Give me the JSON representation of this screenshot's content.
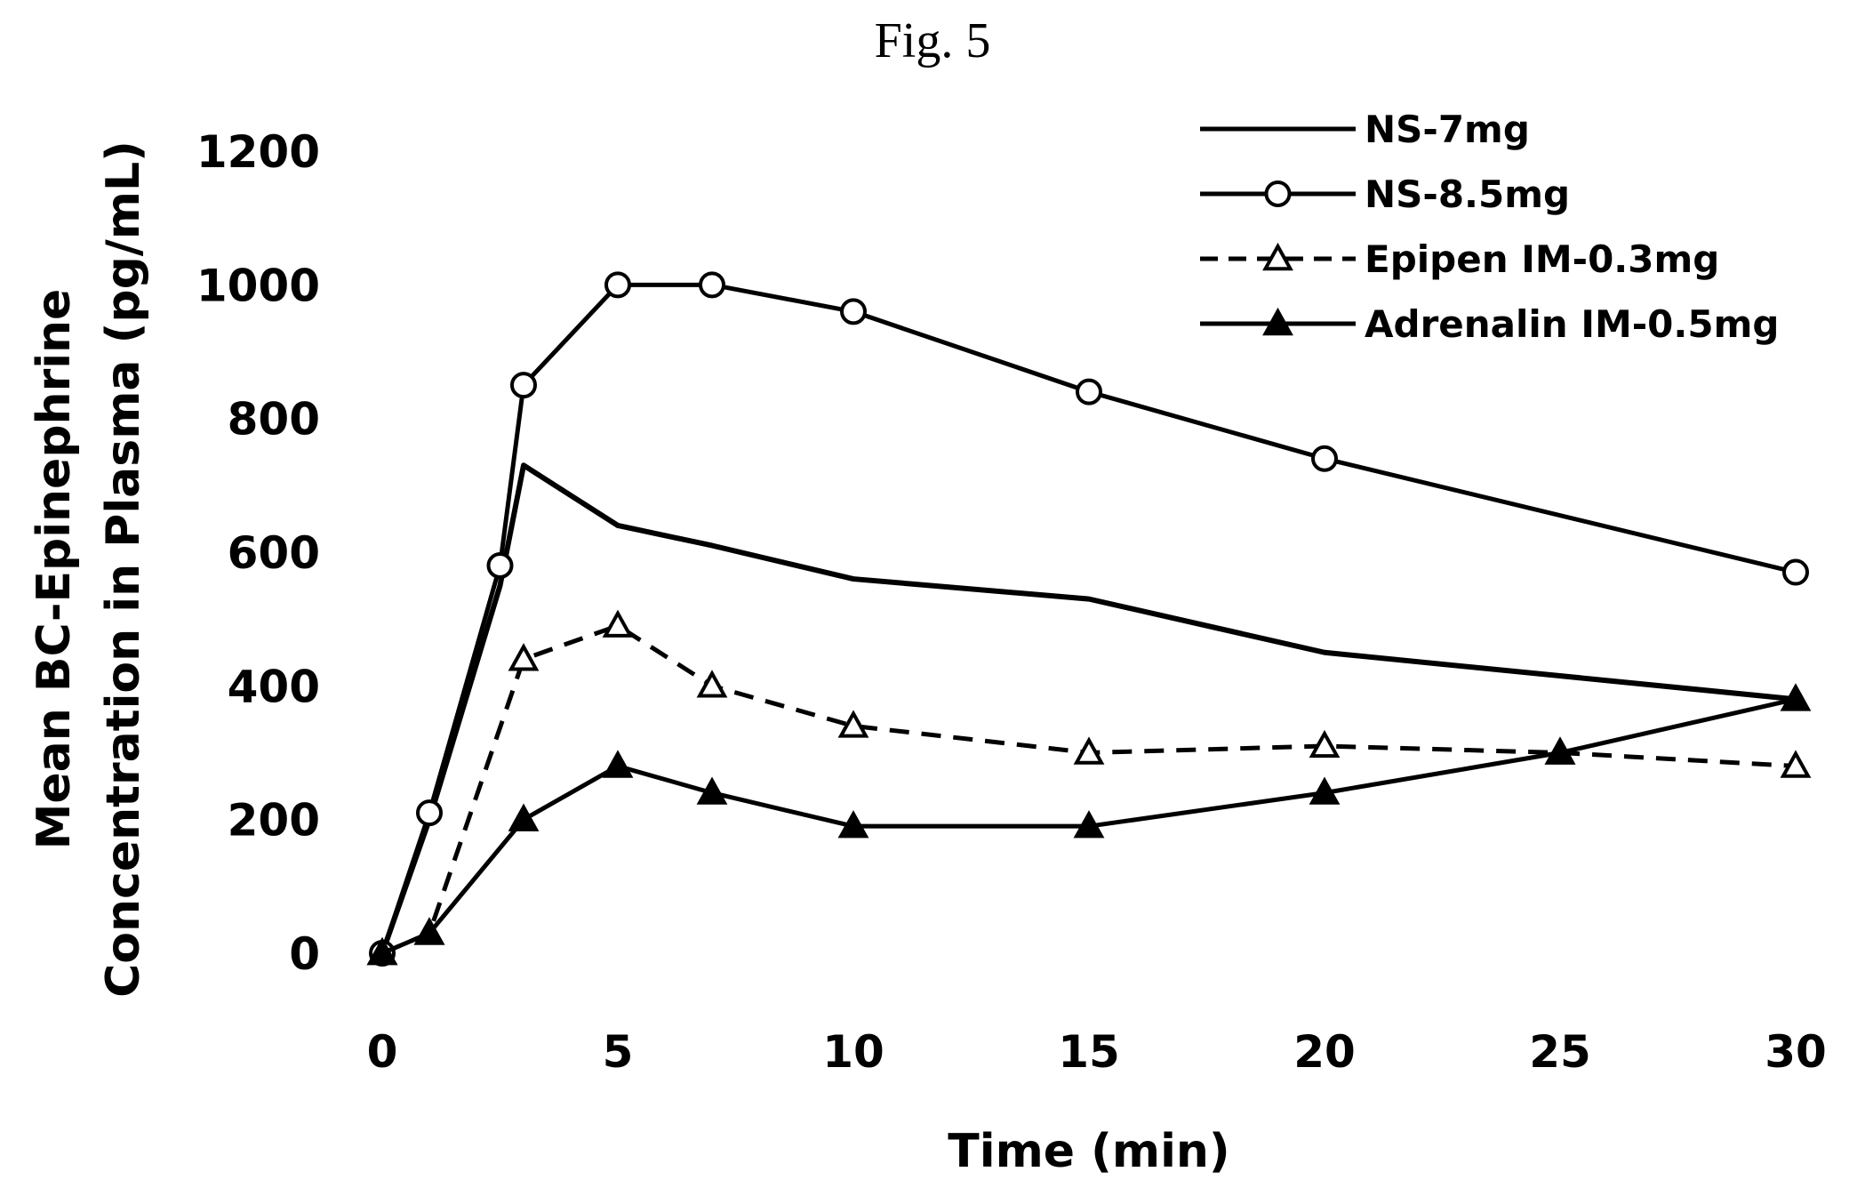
{
  "figure": {
    "title": "Fig. 5"
  },
  "chart_data": {
    "type": "line",
    "title": "",
    "xlabel": "Time (min)",
    "ylabel_line1": "Mean BC-Epinephrine",
    "ylabel_line2": "Concentration in Plasma (pg/mL)",
    "xlim": [
      0,
      30
    ],
    "ylim": [
      0,
      1200
    ],
    "x_ticks": [
      0,
      5,
      10,
      15,
      20,
      25,
      30
    ],
    "y_ticks": [
      0,
      200,
      400,
      600,
      800,
      1000,
      1200
    ],
    "grid": false,
    "legend_position": "top-right",
    "series": [
      {
        "name": "NS-7mg",
        "marker": "none",
        "dash": "solid",
        "x": [
          0,
          1,
          2.5,
          3,
          5,
          7,
          10,
          15,
          20,
          30
        ],
        "y": [
          0,
          200,
          550,
          730,
          640,
          610,
          560,
          530,
          450,
          380
        ]
      },
      {
        "name": "NS-8.5mg",
        "marker": "open-circle",
        "dash": "solid",
        "x": [
          0,
          1,
          2.5,
          3,
          5,
          7,
          10,
          15,
          20,
          30
        ],
        "y": [
          0,
          210,
          580,
          850,
          1000,
          1000,
          960,
          840,
          740,
          570
        ]
      },
      {
        "name": "Epipen IM-0.3mg",
        "marker": "open-triangle",
        "dash": "dashed",
        "x": [
          0,
          1,
          3,
          5,
          7,
          10,
          15,
          20,
          25,
          30
        ],
        "y": [
          0,
          30,
          440,
          490,
          400,
          340,
          300,
          310,
          300,
          280
        ]
      },
      {
        "name": "Adrenalin IM-0.5mg",
        "marker": "filled-triangle",
        "dash": "solid",
        "x": [
          0,
          1,
          3,
          5,
          7,
          10,
          15,
          20,
          25,
          30
        ],
        "y": [
          0,
          30,
          200,
          280,
          240,
          190,
          190,
          240,
          300,
          380
        ]
      }
    ]
  }
}
